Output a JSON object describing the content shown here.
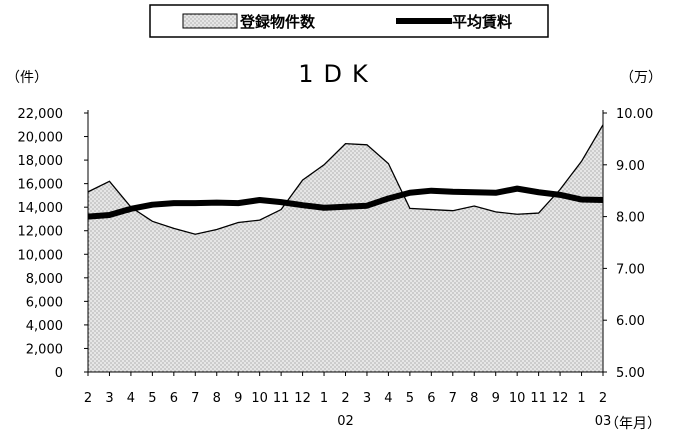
{
  "chart_data": {
    "type": "area",
    "title": "1DK",
    "legend": [
      {
        "name": "登録物件数",
        "style": "dotted-area"
      },
      {
        "name": "平均賃料",
        "style": "thick-line"
      }
    ],
    "legend_position": "top-center",
    "y_left": {
      "unit_label": "（件）",
      "min": 0,
      "max": 22000,
      "step": 2000,
      "ticks": [
        "0",
        "2,000",
        "4,000",
        "6,000",
        "8,000",
        "10,000",
        "12,000",
        "14,000",
        "16,000",
        "18,000",
        "20,000",
        "22,000"
      ]
    },
    "y_right": {
      "unit_label": "（万）",
      "min": 5.0,
      "max": 10.0,
      "step": 1.0,
      "ticks": [
        "5.00",
        "6.00",
        "7.00",
        "8.00",
        "9.00",
        "10.00"
      ]
    },
    "x_unit_label": "（年月）",
    "categories": [
      "2",
      "3",
      "4",
      "5",
      "6",
      "7",
      "8",
      "9",
      "10",
      "11",
      "12",
      "1",
      "2",
      "3",
      "4",
      "5",
      "6",
      "7",
      "8",
      "9",
      "10",
      "11",
      "12",
      "1",
      "2"
    ],
    "year_labels": [
      {
        "index": 12,
        "label": "02"
      },
      {
        "index": 24,
        "label": "03"
      }
    ],
    "series": [
      {
        "name": "登録物件数",
        "type": "area",
        "axis": "left",
        "values": [
          15300,
          16200,
          14000,
          12800,
          12200,
          11700,
          12100,
          12700,
          12900,
          13800,
          16300,
          17600,
          19400,
          19300,
          17700,
          13900,
          13800,
          13700,
          14100,
          13600,
          13400,
          13500,
          15500,
          17900,
          21000
        ]
      },
      {
        "name": "平均賃料",
        "type": "line",
        "axis": "right",
        "values": [
          8.0,
          8.03,
          8.15,
          8.23,
          8.26,
          8.26,
          8.27,
          8.26,
          8.32,
          8.28,
          8.22,
          8.17,
          8.19,
          8.21,
          8.35,
          8.46,
          8.5,
          8.48,
          8.47,
          8.46,
          8.54,
          8.47,
          8.42,
          8.33,
          8.32
        ]
      }
    ],
    "colors": {
      "area_fill": "#e6e6e6",
      "area_dots": "#8a8a8a",
      "line": "#000000"
    }
  }
}
